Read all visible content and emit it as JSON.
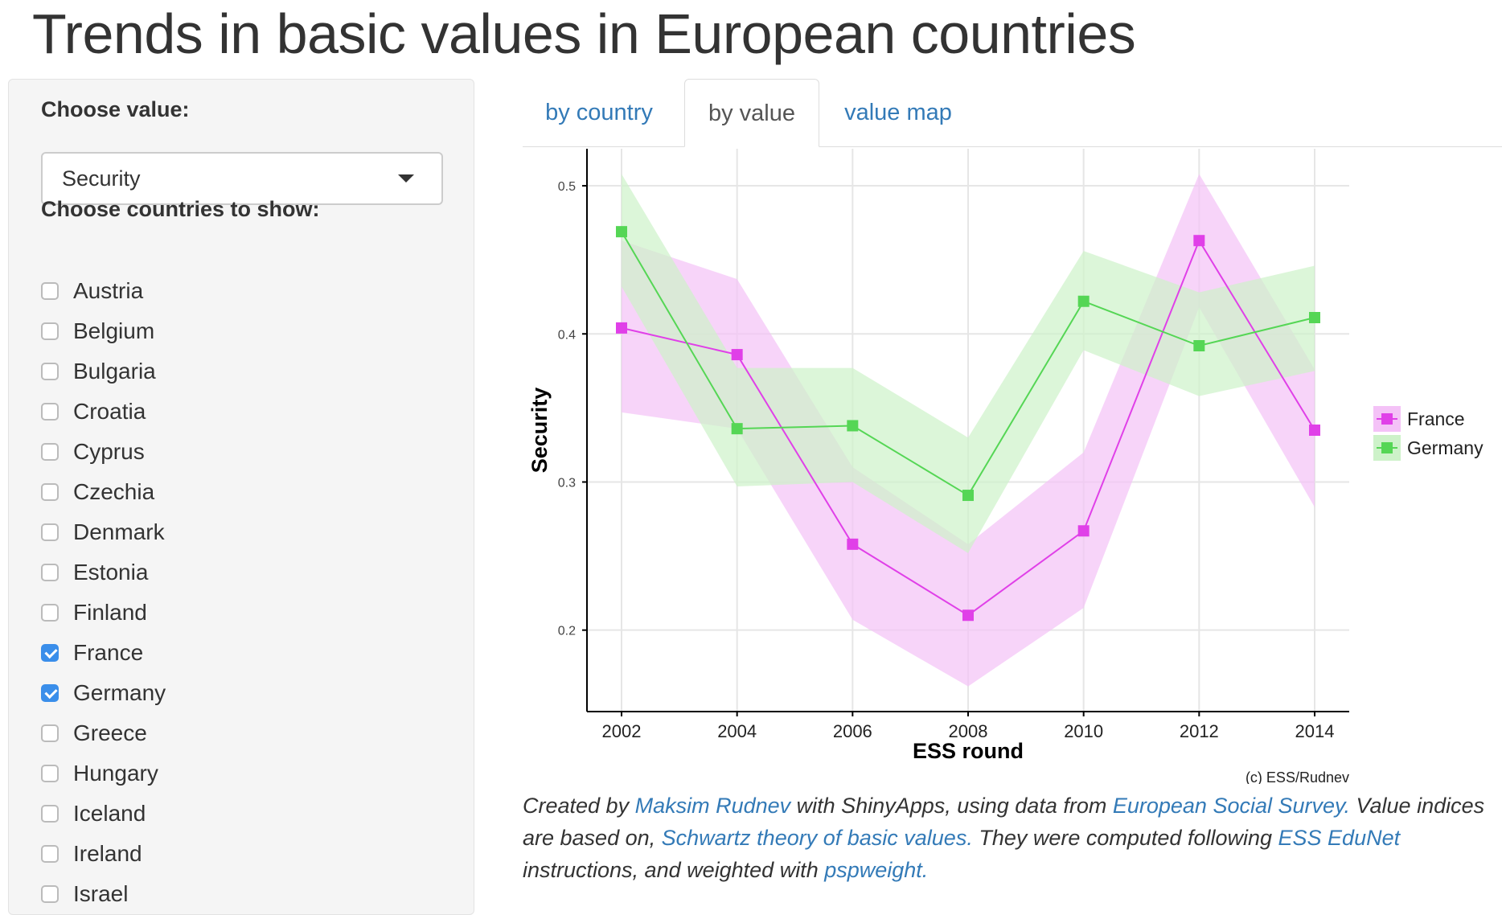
{
  "page": {
    "title": "Trends in basic values in European countries"
  },
  "sidebar": {
    "value_label": "Choose value:",
    "value_selected": "Security",
    "countries_label": "Choose countries to show:",
    "countries": [
      {
        "name": "Austria",
        "checked": false
      },
      {
        "name": "Belgium",
        "checked": false
      },
      {
        "name": "Bulgaria",
        "checked": false
      },
      {
        "name": "Croatia",
        "checked": false
      },
      {
        "name": "Cyprus",
        "checked": false
      },
      {
        "name": "Czechia",
        "checked": false
      },
      {
        "name": "Denmark",
        "checked": false
      },
      {
        "name": "Estonia",
        "checked": false
      },
      {
        "name": "Finland",
        "checked": false
      },
      {
        "name": "France",
        "checked": true
      },
      {
        "name": "Germany",
        "checked": true
      },
      {
        "name": "Greece",
        "checked": false
      },
      {
        "name": "Hungary",
        "checked": false
      },
      {
        "name": "Iceland",
        "checked": false
      },
      {
        "name": "Ireland",
        "checked": false
      },
      {
        "name": "Israel",
        "checked": false
      }
    ]
  },
  "tabs": [
    {
      "label": "by country",
      "active": false
    },
    {
      "label": "by value",
      "active": true
    },
    {
      "label": "value map",
      "active": false
    }
  ],
  "chart_data": {
    "type": "line",
    "xlabel": "ESS round",
    "ylabel": "Security",
    "caption": "(c) ESS/Rudnev",
    "x": [
      2002,
      2004,
      2006,
      2008,
      2010,
      2012,
      2014
    ],
    "xlim": [
      2002,
      2014
    ],
    "ylim": [
      0.145,
      0.525
    ],
    "yticks": [
      0.2,
      0.3,
      0.4,
      0.5
    ],
    "grid": true,
    "legend_position": "right",
    "series": [
      {
        "name": "France",
        "color": "#e040e8",
        "band_color": "#f4c2f7",
        "values": [
          0.404,
          0.386,
          0.258,
          0.21,
          0.267,
          0.463,
          0.335
        ],
        "lower": [
          0.347,
          0.336,
          0.207,
          0.162,
          0.215,
          0.418,
          0.283
        ],
        "upper": [
          0.463,
          0.437,
          0.31,
          0.258,
          0.32,
          0.508,
          0.376
        ]
      },
      {
        "name": "Germany",
        "color": "#55d655",
        "band_color": "#cdf2c9",
        "values": [
          0.469,
          0.336,
          0.338,
          0.291,
          0.422,
          0.392,
          0.411
        ],
        "lower": [
          0.432,
          0.297,
          0.3,
          0.252,
          0.389,
          0.358,
          0.375
        ],
        "upper": [
          0.508,
          0.377,
          0.377,
          0.33,
          0.456,
          0.428,
          0.446
        ]
      }
    ]
  },
  "footer": {
    "t1": "Created by ",
    "link_author": "Maksim Rudnev",
    "t2": " with ShinyApps, using data from ",
    "link_ess": "European Social Survey.",
    "t3": " Value indices are based on, ",
    "link_schwartz": "Schwartz theory of basic values.",
    "t4": " They were computed following ",
    "link_edunet": "ESS EduNet",
    "t5": " instructions, and weighted with ",
    "link_pspweight": "pspweight."
  }
}
